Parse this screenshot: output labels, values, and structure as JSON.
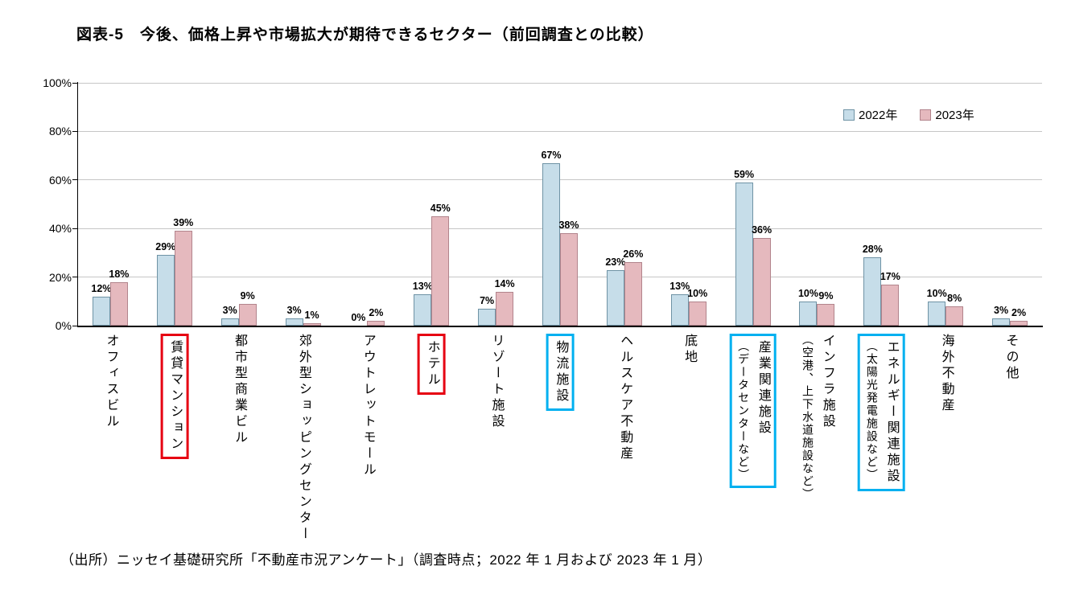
{
  "title": "図表-5　今後、価格上昇や市場拡大が期待できるセクター（前回調査との比較）",
  "source": "（出所）ニッセイ基礎研究所「不動産市況アンケート」（調査時点；2022 年 1 月および 2023 年 1 月）",
  "colors": {
    "series_2022_fill": "#c6dde9",
    "series_2023_fill": "#e5b9be",
    "bar_border": "#7f7f7f",
    "highlight_box_red": "#e60012",
    "highlight_box_blue": "#00b0f0",
    "gridline": "#c6c6c6",
    "axis": "#000000"
  },
  "chart_data": {
    "type": "bar",
    "title": "図表-5　今後、価格上昇や市場拡大が期待できるセクター（前回調査との比較）",
    "xlabel": "",
    "ylabel": "",
    "ylim": [
      0,
      100
    ],
    "ytick_step": 20,
    "ytick_suffix": "%",
    "grid": true,
    "legend_position": "top-right",
    "categories": [
      {
        "label": "オフィスビル",
        "sub": "",
        "box": ""
      },
      {
        "label": "賃貸マンション",
        "sub": "",
        "box": "red"
      },
      {
        "label": "都市型商業ビル",
        "sub": "",
        "box": ""
      },
      {
        "label": "郊外型ショッピングセンター",
        "sub": "",
        "box": ""
      },
      {
        "label": "アウトレットモール",
        "sub": "",
        "box": ""
      },
      {
        "label": "ホテル",
        "sub": "",
        "box": "red"
      },
      {
        "label": "リゾート施設",
        "sub": "",
        "box": ""
      },
      {
        "label": "物流施設",
        "sub": "",
        "box": "blue"
      },
      {
        "label": "ヘルスケア不動産",
        "sub": "",
        "box": ""
      },
      {
        "label": "底地",
        "sub": "",
        "box": ""
      },
      {
        "label": "産業関連施設",
        "sub": "（データセンターなど）",
        "box": "blue"
      },
      {
        "label": "インフラ施設",
        "sub": "（空港、上下水道施設など）",
        "box": ""
      },
      {
        "label": "エネルギー関連施設",
        "sub": "（太陽光発電施設など）",
        "box": "blue"
      },
      {
        "label": "海外不動産",
        "sub": "",
        "box": ""
      },
      {
        "label": "その他",
        "sub": "",
        "box": ""
      }
    ],
    "series": [
      {
        "name": "2022年",
        "values": [
          12,
          29,
          3,
          3,
          0,
          13,
          7,
          67,
          23,
          13,
          59,
          10,
          28,
          10,
          3
        ]
      },
      {
        "name": "2023年",
        "values": [
          18,
          39,
          9,
          1,
          2,
          45,
          14,
          38,
          26,
          10,
          36,
          9,
          17,
          8,
          2
        ]
      }
    ]
  }
}
